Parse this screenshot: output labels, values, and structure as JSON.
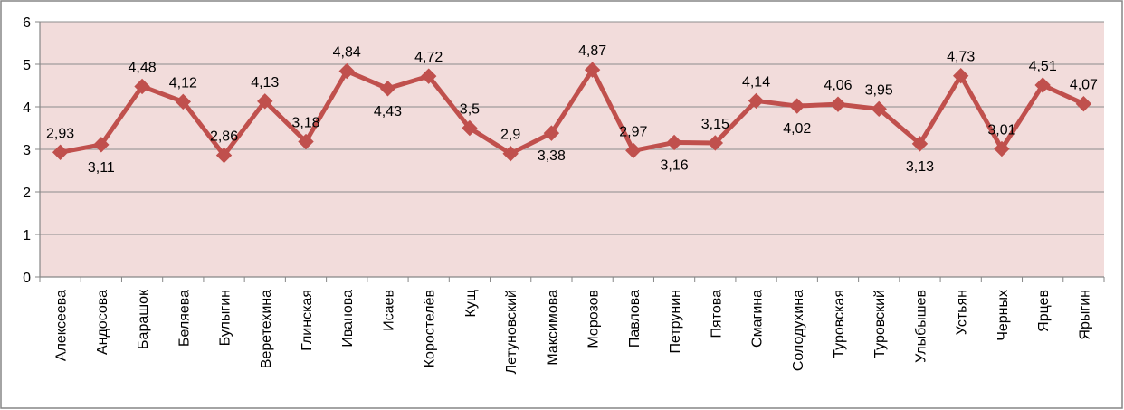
{
  "chart_data": {
    "type": "line",
    "title": "",
    "xlabel": "",
    "ylabel": "",
    "ylim": [
      0,
      6
    ],
    "yticks": [
      "0",
      "1",
      "2",
      "3",
      "4",
      "5",
      "6"
    ],
    "grid": true,
    "legend": "none",
    "categories": [
      "Алексеева",
      "Андосова",
      "Барашок",
      "Беляева",
      "Булыгин",
      "Веретехина",
      "Глинская",
      "Иванова",
      "Исаев",
      "Коростелёв",
      "Кущ",
      "Летуновский",
      "Максимова",
      "Морозов",
      "Павлова",
      "Петрунин",
      "Пятова",
      "Смагина",
      "Солодухина",
      "Туровская",
      "Туровский",
      "Улыбышев",
      "Устьян",
      "Черных",
      "Ярцев",
      "Ярыгин"
    ],
    "values": [
      2.93,
      3.11,
      4.48,
      4.12,
      2.86,
      4.13,
      3.18,
      4.84,
      4.43,
      4.72,
      3.5,
      2.9,
      3.38,
      4.87,
      2.97,
      3.16,
      3.15,
      4.14,
      4.02,
      4.06,
      3.95,
      3.13,
      4.73,
      3.01,
      4.51,
      4.07
    ],
    "data_labels": [
      "2,93",
      "3,11",
      "4,48",
      "4,12",
      "2,86",
      "4,13",
      "3,18",
      "4,84",
      "4,43",
      "4,72",
      "3,5",
      "2,9",
      "3,38",
      "4,87",
      "2,97",
      "3,16",
      "3,15",
      "4,14",
      "4,02",
      "4,06",
      "3,95",
      "3,13",
      "4,73",
      "3,01",
      "4,51",
      "4,07"
    ],
    "label_position": [
      "above",
      "below",
      "above",
      "above",
      "above",
      "above",
      "above",
      "above",
      "below",
      "above",
      "above",
      "above",
      "below",
      "above",
      "above",
      "below",
      "above",
      "above",
      "below",
      "above",
      "above",
      "below",
      "above",
      "above",
      "above",
      "above"
    ],
    "colors": {
      "line": "#c0504d",
      "marker": "#c0504d",
      "plot_background": "#f2dcdb",
      "gridline": "#8c8c8c",
      "axis": "#868686",
      "frame": "#868686"
    }
  }
}
